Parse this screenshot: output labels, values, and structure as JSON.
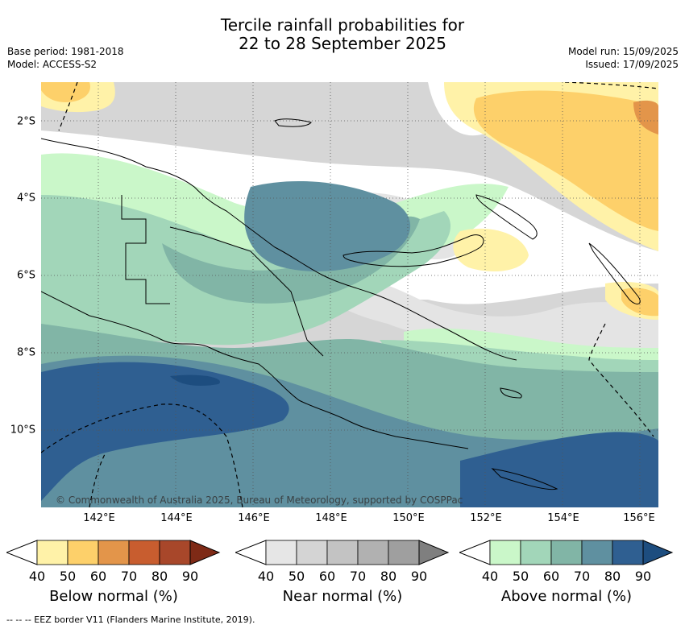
{
  "title_line1": "Tercile rainfall probabilities for",
  "title_line2": "22 to 28 September 2025",
  "base_period": "Base period: 1981-2018",
  "model": "Model: ACCESS-S2",
  "model_run": "Model run: 15/09/2025",
  "issued": "Issued: 17/09/2025",
  "credit": "© Commonwealth of Australia 2025, Bureau of Meteorology, supported by COSPPac",
  "footer": "-- -- -- EEZ border V11 (Flanders Marine Institute, 2019).",
  "lon_ticks": [
    "142°E",
    "144°E",
    "146°E",
    "148°E",
    "150°E",
    "152°E",
    "154°E",
    "156°E"
  ],
  "lat_ticks": [
    "2°S",
    "4°S",
    "6°S",
    "8°S",
    "10°S"
  ],
  "legends": [
    {
      "title": "Below normal (%)",
      "ticks": [
        "40",
        "50",
        "60",
        "70",
        "80",
        "90"
      ],
      "colors": [
        "#fff2a8",
        "#fdd06a",
        "#e3954a",
        "#c85d2f",
        "#a8472a",
        "#7e2a16"
      ]
    },
    {
      "title": "Near normal (%)",
      "ticks": [
        "40",
        "50",
        "60",
        "70",
        "80",
        "90"
      ],
      "colors": [
        "#e6e6e6",
        "#d4d4d4",
        "#c3c3c3",
        "#b1b1b1",
        "#9f9f9f",
        "#7f7f7f"
      ]
    },
    {
      "title": "Above normal (%)",
      "ticks": [
        "40",
        "50",
        "60",
        "70",
        "80",
        "90"
      ],
      "colors": [
        "#caf7c9",
        "#a2d6b9",
        "#81b5a6",
        "#5f90a0",
        "#2f5f91",
        "#1d4d7f"
      ]
    }
  ]
}
